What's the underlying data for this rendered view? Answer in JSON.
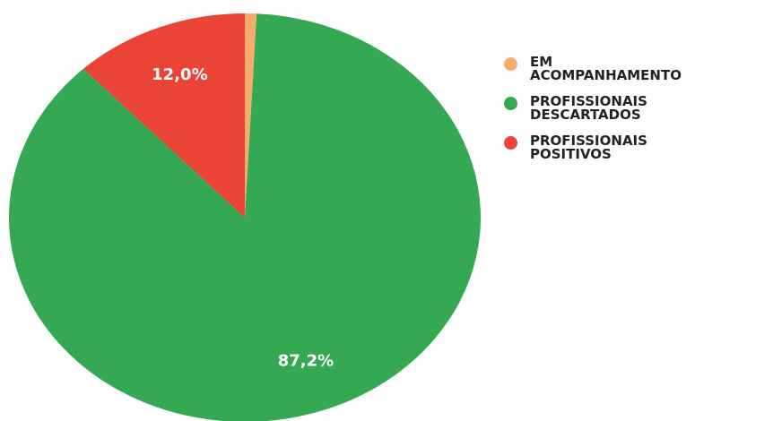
{
  "chart_data": {
    "type": "pie",
    "categories": [
      "EM ACOMPANHAMENTO",
      "PROFISSIONAIS DESCARTADOS",
      "PROFISSIONAIS POSITIVOS"
    ],
    "values": [
      0.8,
      87.2,
      12.0
    ],
    "value_labels": [
      null,
      "87,2%",
      "12,0%"
    ],
    "colors": [
      "#f6ad6b",
      "#35a853",
      "#e94436"
    ],
    "legend": "right"
  }
}
